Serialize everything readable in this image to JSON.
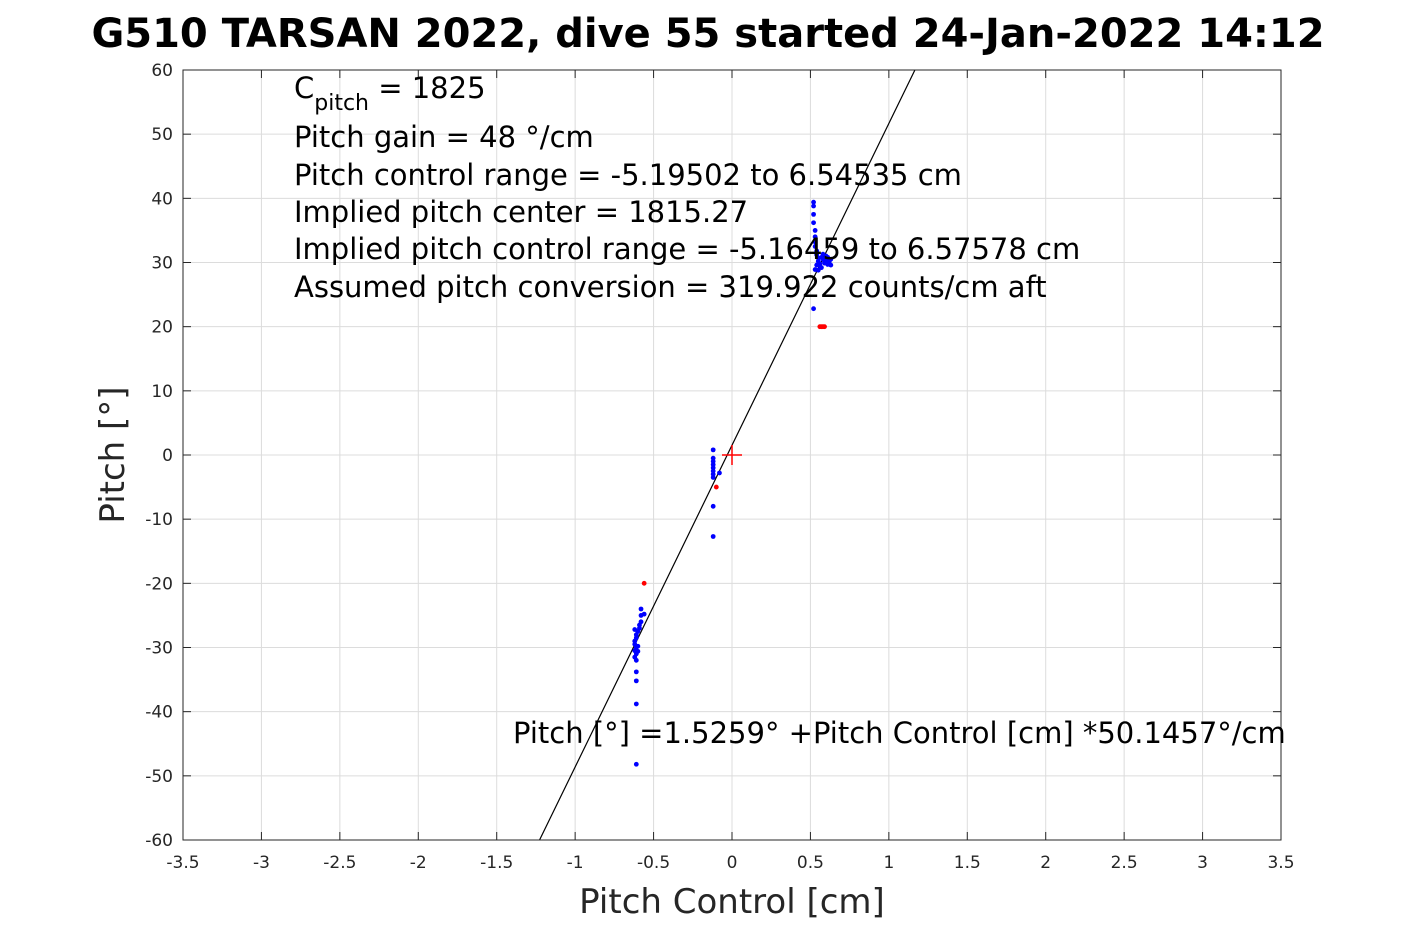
{
  "chart_data": {
    "type": "scatter",
    "title": "G510 TARSAN 2022, dive 55 started 24-Jan-2022 14:12",
    "xlabel": "Pitch Control [cm]",
    "ylabel": "Pitch [°]",
    "xlim": [
      -3.5,
      3.5
    ],
    "ylim": [
      -60,
      60
    ],
    "xticks": [
      "-3.5",
      "-3",
      "-2.5",
      "-2",
      "-1.5",
      "-1",
      "-0.5",
      "0",
      "0.5",
      "1",
      "1.5",
      "2",
      "2.5",
      "3",
      "3.5"
    ],
    "yticks": [
      "60",
      "50",
      "40",
      "30",
      "20",
      "10",
      "0",
      "-10",
      "-20",
      "-30",
      "-40",
      "-50",
      "-60"
    ],
    "grid": true,
    "annotations": {
      "c_pitch_symbol": "C",
      "c_pitch_sub": "pitch",
      "c_pitch_value": " = 1825",
      "pitch_gain": "Pitch gain = 48 °/cm",
      "pitch_control_range": "Pitch control range = -5.19502 to 6.54535 cm",
      "implied_center": "Implied pitch center = 1815.27",
      "implied_range": "Implied pitch control range = -5.16459 to 6.57578 cm",
      "assumed_conversion": "Assumed pitch conversion = 319.922 counts/cm aft",
      "fit_equation": "Pitch [°] =1.5259° +Pitch Control [cm] *50.1457°/cm"
    },
    "fit_line": {
      "intercept": 1.5259,
      "slope": 50.1457,
      "color": "#000000"
    },
    "center_marker": {
      "x": 0,
      "y": 0,
      "color": "#ff0000"
    },
    "series": [
      {
        "color": "#0000ff",
        "points": [
          [
            0.52,
            39.4
          ],
          [
            0.52,
            38.8
          ],
          [
            0.52,
            37.5
          ],
          [
            0.52,
            36.2
          ],
          [
            0.53,
            35.0
          ],
          [
            0.53,
            34.0
          ],
          [
            0.53,
            33.2
          ],
          [
            0.53,
            32.5
          ],
          [
            0.54,
            31.8
          ],
          [
            0.54,
            31.2
          ],
          [
            0.55,
            30.7
          ],
          [
            0.55,
            30.2
          ],
          [
            0.56,
            29.8
          ],
          [
            0.56,
            29.5
          ],
          [
            0.57,
            29.2
          ],
          [
            0.57,
            30.8
          ],
          [
            0.58,
            31.3
          ],
          [
            0.58,
            30.5
          ],
          [
            0.59,
            30.1
          ],
          [
            0.59,
            29.9
          ],
          [
            0.6,
            31.0
          ],
          [
            0.6,
            30.4
          ],
          [
            0.61,
            30.8
          ],
          [
            0.61,
            29.7
          ],
          [
            0.62,
            30.2
          ],
          [
            0.62,
            29.8
          ],
          [
            0.63,
            30.5
          ],
          [
            0.63,
            29.6
          ],
          [
            0.55,
            28.8
          ],
          [
            0.54,
            29.6
          ],
          [
            0.53,
            28.9
          ],
          [
            0.52,
            22.8
          ],
          [
            -0.12,
            0.8
          ],
          [
            -0.12,
            -0.5
          ],
          [
            -0.12,
            -1.0
          ],
          [
            -0.12,
            -1.5
          ],
          [
            -0.12,
            -2.0
          ],
          [
            -0.12,
            -2.5
          ],
          [
            -0.12,
            -3.0
          ],
          [
            -0.12,
            -3.5
          ],
          [
            -0.08,
            -2.8
          ],
          [
            -0.12,
            -8.0
          ],
          [
            -0.12,
            -12.7
          ],
          [
            -0.56,
            -24.8
          ],
          [
            -0.58,
            -24.0
          ],
          [
            -0.58,
            -25.0
          ],
          [
            -0.58,
            -26.0
          ],
          [
            -0.59,
            -26.5
          ],
          [
            -0.59,
            -27.0
          ],
          [
            -0.6,
            -27.5
          ],
          [
            -0.61,
            -28.0
          ],
          [
            -0.61,
            -28.5
          ],
          [
            -0.62,
            -29.0
          ],
          [
            -0.62,
            -29.5
          ],
          [
            -0.61,
            -30.0
          ],
          [
            -0.62,
            -30.5
          ],
          [
            -0.61,
            -31.0
          ],
          [
            -0.62,
            -31.5
          ],
          [
            -0.62,
            -27.2
          ],
          [
            -0.6,
            -29.8
          ],
          [
            -0.6,
            -30.6
          ],
          [
            -0.61,
            -32.0
          ],
          [
            -0.61,
            -33.8
          ],
          [
            -0.61,
            -35.2
          ],
          [
            -0.61,
            -38.8
          ],
          [
            -0.61,
            -48.2
          ]
        ]
      },
      {
        "color": "#ff0000",
        "points": [
          [
            0.56,
            20.0
          ],
          [
            0.57,
            20.0
          ],
          [
            0.58,
            20.0
          ],
          [
            0.59,
            20.0
          ],
          [
            -0.56,
            -20.0
          ],
          [
            -0.1,
            -5.0
          ]
        ]
      }
    ]
  }
}
